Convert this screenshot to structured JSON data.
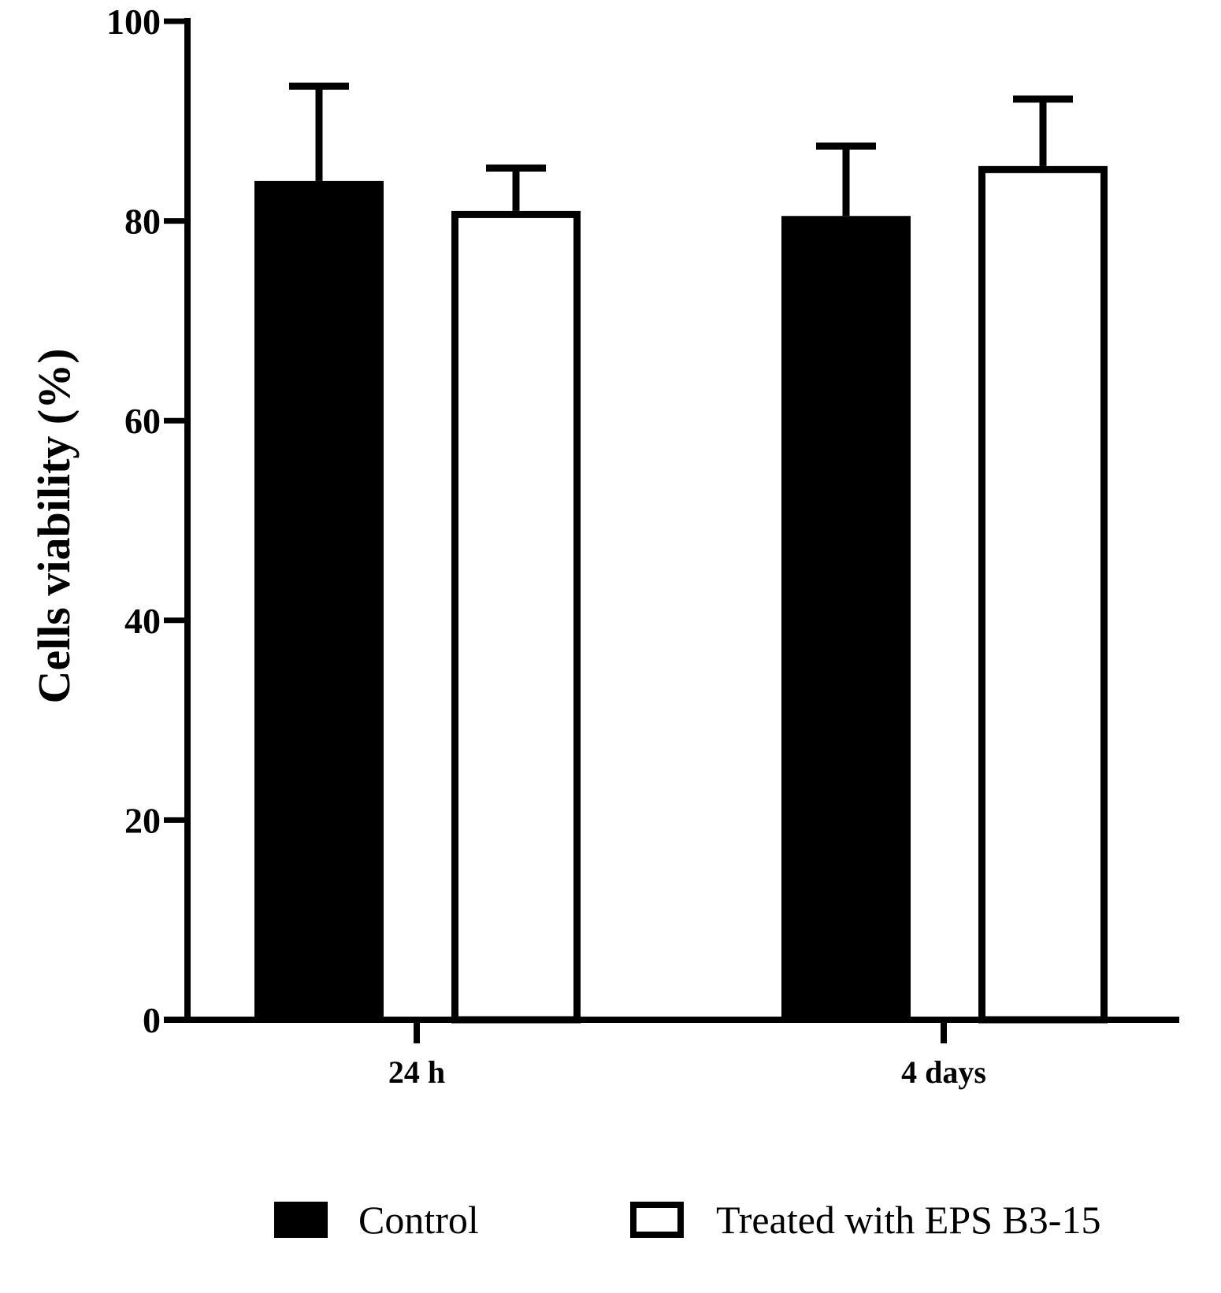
{
  "chart_data": {
    "type": "bar",
    "title": "",
    "xlabel": "",
    "ylabel": "Cells viability (%)",
    "ylim": [
      0,
      100
    ],
    "yticks": [
      0,
      20,
      40,
      60,
      80,
      100
    ],
    "categories": [
      "24 h",
      "4 days"
    ],
    "series": [
      {
        "name": "Control",
        "style": "filled",
        "color": "#000000",
        "values": [
          84,
          80.5
        ],
        "errors": [
          9.5,
          7
        ]
      },
      {
        "name": "Treated with EPS B3-15",
        "style": "outline",
        "color": "#000000",
        "values": [
          81,
          85.5
        ],
        "errors": [
          4.3,
          6.7
        ]
      }
    ],
    "grid": false,
    "legend_position": "bottom"
  }
}
